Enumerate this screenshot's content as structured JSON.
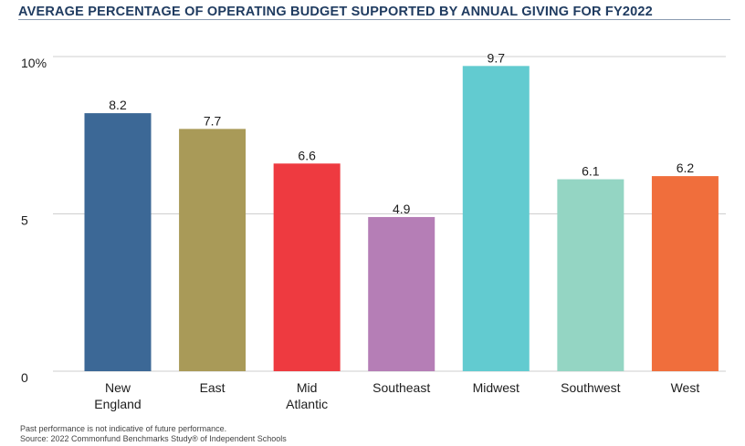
{
  "chart_data": {
    "type": "bar",
    "title": "AVERAGE PERCENTAGE OF OPERATING BUDGET SUPPORTED BY ANNUAL GIVING FOR FY2022",
    "categories": [
      [
        "New",
        "England"
      ],
      [
        "East"
      ],
      [
        "Mid",
        "Atlantic"
      ],
      [
        "Southeast"
      ],
      [
        "Midwest"
      ],
      [
        "Southwest"
      ],
      [
        "West"
      ]
    ],
    "values": [
      8.2,
      7.7,
      6.6,
      4.9,
      9.7,
      6.1,
      6.2
    ],
    "value_labels": [
      "8.2",
      "7.7",
      "6.6",
      "4.9",
      "9.7",
      "6.1",
      "6.2"
    ],
    "colors": [
      "#3c6896",
      "#a99a58",
      "#ee3a40",
      "#b57eb6",
      "#62cbd0",
      "#94d5c3",
      "#f06e3c"
    ],
    "ylim": [
      0,
      10
    ],
    "yticks": [
      0,
      5,
      10
    ],
    "ytick_labels": [
      "0",
      "5",
      "10%"
    ],
    "grid": true,
    "grid_color": "#cfcfcf",
    "title_color": "#1f3b60",
    "xlabel": "",
    "ylabel": ""
  },
  "footnotes": {
    "line1": "Past performance is not indicative of future performance.",
    "line2": "Source: 2022 Commonfund Benchmarks Study® of Independent Schools"
  }
}
